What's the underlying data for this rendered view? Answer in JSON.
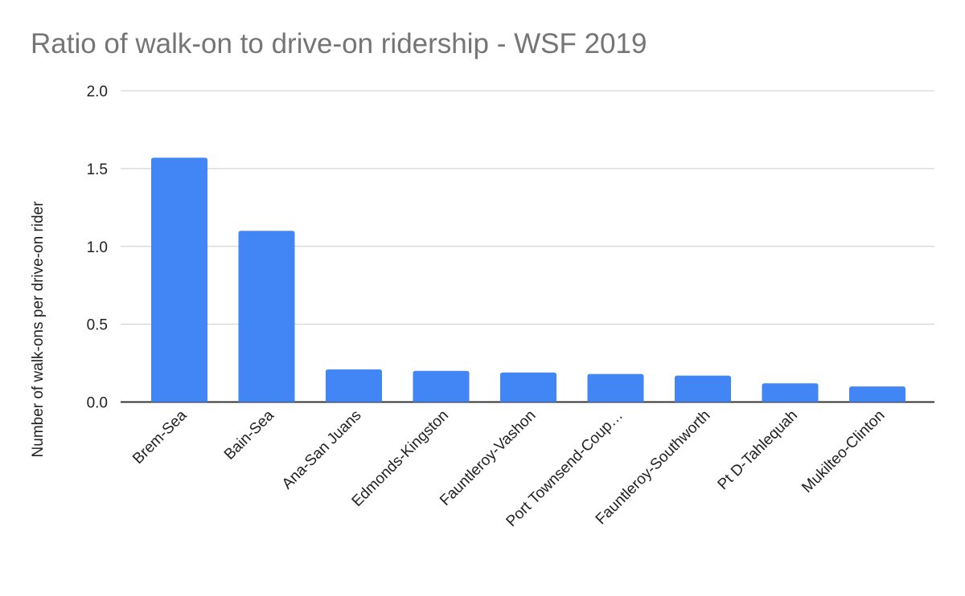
{
  "chart_data": {
    "type": "bar",
    "title": "Ratio of walk-on to drive-on ridership - WSF 2019",
    "xlabel": "",
    "ylabel": "Number of walk-ons per drive-on rider",
    "categories": [
      "Brem-Sea",
      "Bain-Sea",
      "Ana-San Juans",
      "Edmonds-Kingston",
      "Fauntleroy-Vashon",
      "Port Townsend-Coup…",
      "Fauntleroy-Southworth",
      "Pt D-Tahlequah",
      "Mukilteo-Clinton"
    ],
    "values": [
      1.57,
      1.1,
      0.21,
      0.2,
      0.19,
      0.18,
      0.17,
      0.12,
      0.1
    ],
    "ylim": [
      0,
      2.0
    ],
    "yticks": [
      "0.0",
      "0.5",
      "1.0",
      "1.5",
      "2.0"
    ],
    "grid": true,
    "legend": "none",
    "colors": {
      "bar": "#4285f4",
      "title": "#757575",
      "grid": "#cccccc",
      "axis": "#333333"
    }
  }
}
